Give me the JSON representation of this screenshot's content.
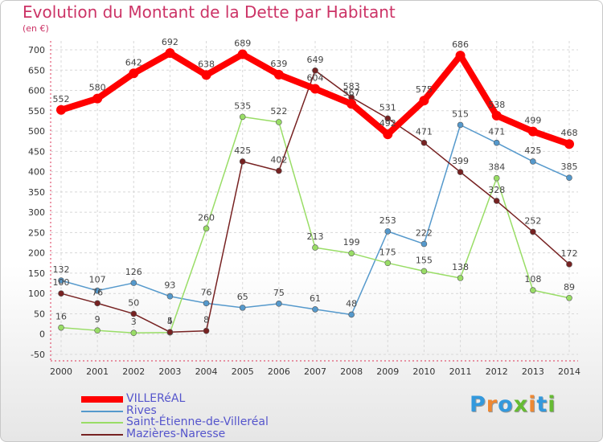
{
  "chart_data": {
    "type": "line",
    "title": "Evolution du Montant de la Dette par Habitant",
    "unit_label": "(en €)",
    "x": [
      "2000",
      "2001",
      "2002",
      "2003",
      "2004",
      "2005",
      "2006",
      "2007",
      "2008",
      "2009",
      "2010",
      "2011",
      "2012",
      "2013",
      "2014"
    ],
    "y_ticks": [
      "-50",
      "0",
      "50",
      "100",
      "150",
      "200",
      "250",
      "300",
      "350",
      "400",
      "450",
      "500",
      "550",
      "600",
      "650",
      "700"
    ],
    "ylim": [
      -50,
      700
    ],
    "grid": true,
    "legend_position": "bottom-left",
    "series": [
      {
        "name": "VILLERéAL",
        "color": "#ff0000",
        "emphasis": true,
        "values": [
          552,
          580,
          642,
          692,
          638,
          689,
          639,
          604,
          567,
          492,
          575,
          686,
          538,
          499,
          468
        ],
        "labels": [
          "552",
          "580",
          "642",
          "692",
          "638",
          "689",
          "639",
          "604",
          "567",
          "492",
          "575",
          "686",
          "538",
          "499",
          "468"
        ]
      },
      {
        "name": "Rives",
        "color": "#5599cc",
        "values": [
          132,
          107,
          126,
          93,
          76,
          65,
          75,
          61,
          48,
          253,
          222,
          515,
          471,
          425,
          385
        ],
        "labels": [
          "132",
          "107",
          "126",
          "93",
          "76",
          "65",
          "75",
          "61",
          "48",
          "253",
          "222",
          "515",
          "471",
          "425",
          "385"
        ]
      },
      {
        "name": "Saint-Étienne-de-Villeréal",
        "color": "#99dd66",
        "values": [
          16,
          9,
          3,
          4,
          260,
          535,
          522,
          213,
          199,
          175,
          155,
          138,
          384,
          108,
          89
        ],
        "labels": [
          "16",
          "9",
          "3",
          "4",
          "260",
          "535",
          "522",
          "213",
          "199",
          "175",
          "155",
          "138",
          "384",
          "108",
          "89"
        ]
      },
      {
        "name": "Mazières-Naresse",
        "color": "#772222",
        "values": [
          100,
          76,
          50,
          5,
          8,
          425,
          402,
          649,
          583,
          531,
          471,
          399,
          328,
          252,
          172
        ],
        "labels": [
          "100",
          "76",
          "50",
          "5",
          "8",
          "425",
          "402",
          "649",
          "583",
          "531",
          "471",
          "399",
          "328",
          "252",
          "172"
        ]
      }
    ]
  },
  "logo": {
    "letters": [
      {
        "ch": "P",
        "color": "#3399dd"
      },
      {
        "ch": "r",
        "color": "#ee8833"
      },
      {
        "ch": "o",
        "color": "#3399dd"
      },
      {
        "ch": "x",
        "color": "#66bb33"
      },
      {
        "ch": "i",
        "color": "#ee8833"
      },
      {
        "ch": "t",
        "color": "#3399dd"
      },
      {
        "ch": "i",
        "color": "#66bb33"
      }
    ]
  }
}
